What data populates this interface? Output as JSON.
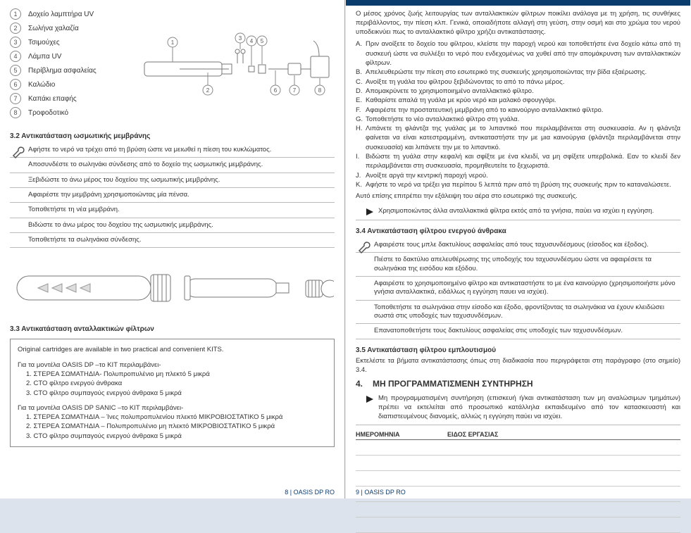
{
  "colors": {
    "brand": "#0b3c6e",
    "rule": "#bbbbbb",
    "text": "#333333"
  },
  "left": {
    "parts": [
      {
        "n": "1",
        "label": "Δοχείο λαμπτήρα UV"
      },
      {
        "n": "2",
        "label": "Σωλήνα χαλαζία"
      },
      {
        "n": "3",
        "label": "Τσιμούχες"
      },
      {
        "n": "4",
        "label": "Λάμπα UV"
      },
      {
        "n": "5",
        "label": "Περίβλημα ασφαλείας"
      },
      {
        "n": "6",
        "label": "Καλώδιο"
      },
      {
        "n": "7",
        "label": "Καπάκι επαφής"
      },
      {
        "n": "8",
        "label": "Τροφοδοτικό"
      }
    ],
    "sec32": "3.2  Αντικατάσταση ωσμωτικής μεμβράνης",
    "steps32": [
      "Αφήστε το νερό να τρέχει από τη βρύση ώστε να μειωθεί η πίεση του κυκλώματος.",
      "Αποσυνδέστε το σωληνάκι σύνδεσης από το δοχείο της ωσμωτικής μεμβράνης.",
      "Ξεβιδώστε το άνω μέρος του δοχείου της ωσμωτικής μεμβράνης.",
      "Αφαιρέστε την μεμβράνη χρησιμοποιώντας  μία πένσα.",
      "Τοποθετήστε τη νέα μεμβράνη.",
      "Βιδώστε το άνω μέρος του δοχείου της ωσμωτικής μεμβράνης.",
      "Τοποθετήστε τα σωληνάκια σύνδεσης."
    ],
    "sec33": "3.3  Αντικατάσταση ανταλλακτικών φίλτρων",
    "kit": {
      "lead": "Original cartridges are available in two practical and convenient KITS.",
      "g1_head": "Για τα μοντέλα OASIS DP –το KIT περιλαμβάνει-",
      "g1": [
        "1. ΣΤΕΡΕΑ ΣΩΜΑΤΗΔΙΑ- Πολυπροπυλένιο μη πλεκτό 5 μικρά",
        "2. CTO φίλτρο ενεργού άνθρακα",
        "3. CTO φίλτρο συμπαγούς ενεργού άνθρακα 5 μικρά"
      ],
      "g2_head": "Για τα μοντέλα OASIS DP SANIC –το KIT περιλαμβάνει-",
      "g2": [
        "1. ΣΤΕΡΕΑ ΣΩΜΑΤΗΔΙΑ – Ίνες πολυπροπυλενίου πλεκτό ΜΙΚΡΟΒΙΟΣΤΑΤΙΚΟ 5 μικρά",
        "2. ΣΤΕΡΕΑ ΣΩΜΑΤΗΔΙΑ – Πολυπροπυλένιο μη πλεκτό ΜΙΚΡΟΒΙΟΣΤΑΤΙΚΟ 5 μικρά",
        "3. CTO φίλτρο συμπαγούς ενεργού άνθρακα 5 μικρά"
      ]
    },
    "footer": "8  |  OASIS DP RO"
  },
  "right": {
    "intro": "Ο μέσος χρόνος ζωής λειτουργίας των ανταλλακτικών φίλτρων ποικίλει ανάλογα με τη χρήση, τις συνθήκες περιβάλλοντος, την πίεση κλπ. Γενικά, οποιαδήποτε αλλαγή στη γεύση, στην οσμή και στο χρώμα του νερού υποδεικνύει πως το ανταλλακτικό φίλτρο χρήζει αντικατάστασης.",
    "letters": [
      {
        "l": "A.",
        "t": "Πριν ανοίξετε το δοχείο του φίλτρου, κλείστε την παροχή νερού και τοποθετήστε ένα δοχείο κάτω από τη συσκευή ώστε να συλλέξει το νερό που ενδεχομένως να χυθεί από την απομάκρυνση των ανταλλακτικών φίλτρων."
      },
      {
        "l": "B.",
        "t": "Απελευθερώστε την πίεση στο εσωτερικό της συσκευής χρησιμοποιώντας την βίδα εξαέρωσης."
      },
      {
        "l": "C.",
        "t": "Ανοίξτε τη γυάλα του φίλτρου ξεβιδώνοντας το από το πάνω μέρος."
      },
      {
        "l": "D.",
        "t": "Απομακρύνετε το χρησιμοποιημένο ανταλλακτικό φίλτρο."
      },
      {
        "l": "E.",
        "t": "Καθαρίστε απαλά τη γυάλα με κρύο νερό και μαλακό σφουγγάρι."
      },
      {
        "l": "F.",
        "t": "Αφαιρέστε την προστατευτική μεμβράνη από το καινούργιο ανταλλακτικό φίλτρο."
      },
      {
        "l": "G.",
        "t": "Τοποθετήστε το νέο ανταλλακτικό φίλτρο στη γυάλα."
      },
      {
        "l": "H.",
        "t": "Λιπάνετε τη φλάντζα της γυάλας με το λιπαντικό που περιλαμβάνεται στη συσκευασία. Αν η φλάντζα φαίνεται να είναι κατεστραμμένη, αντικαταστήστε την με μια καινούργια (φλάντζα περιλαμβάνεται στην συσκευασία) και λιπάνετε την με το λιπαντικό."
      },
      {
        "l": "I.",
        "t": "Βιδώστε τη γυάλα στην κεφαλή και σφίξτε με ένα κλειδί, να μη σφίξετε υπερβολικά. Εαν το κλειδί δεν περιλαμβάνεται στη συσκευασία, προμηθευτείτε το ξεχωριστά."
      },
      {
        "l": "J.",
        "t": "Ανοίξτε αργά την κεντρική παροχή νερού."
      },
      {
        "l": "K.",
        "t": "Αφήστε το νερό να τρέξει για περίπου 5 λεπτά πριν από τη βρύση της συσκευής πριν το καταναλώσετε."
      }
    ],
    "tail": "Αυτό επίσης επιτρέπει την εξάλειψη του αέρα στο εσωτερικό της συσκευής.",
    "warn1": "Χρησιμοποιώντας άλλα ανταλλακτικά φίλτρα εκτός από τα γνήσια, παύει να ισχύει η εγγύηση.",
    "sec34": "3.4  Αντικατάσταση φίλτρου ενεργού άνθρακα",
    "steps34": [
      "Αφαιρέστε τους μπλε δακτυλίους ασφαλείας από τους ταχυσυνδέσμους (είσοδος και έξοδος).",
      "Πιέστε το δακτύλιο απελευθέρωσης της υποδοχής του ταχυσυνδέσμου ώστε να αφαιρέσετε τα σωληνάκια της εισόδου και εξόδου.",
      "Αφαιρέστε το χρησιμοποιημένο φίλτρο και αντικαταστήστε το με ένα καινούργιο (χρησιμοποιήστε μόνο γνήσια ανταλλακτικά, ειδάλλως η εγγύηση παυει να ισχύει).",
      "Τοποθετήστε τα σωληνάκια στην είσοδο και έξοδο, φροντίζοντας τα σωληνάκια να έχουν κλειδώσει σωστά στις υποδοχές των ταχυσυνδέσμων.",
      "Επανατοποθετήστε τους δακτυλίους ασφαλείας στις υποδοχές των ταχυσυνδέσμων."
    ],
    "sec35": "3.5  Αντικατάσταση φίλτρου εμπλουτισμού",
    "txt35": "Εκτελέστε τα βήματα αντικατάστασης όπως στη διαδικασία που περιγράφεται στη παράγραφο (στο σημείο) 3.4.",
    "sec4n": "4.",
    "sec4t": "ΜΗ ΠΡΟΓΡΑΜΜΑΤΙΣΜΕΝΗ ΣΥΝΤΗΡΗΣΗ",
    "txt4": "Μη προγραμματισμένη συντήρηση (επισκευή ή/και αντικατάσταση των μη αναλώσιμων τμημάτων) πρέπει να εκτελείται από προσωπικό κατάλληλα εκπαιδευμένο από τον κατασκευαστή και διαπιστευμένους διανομείς, αλλιώς η εγγύηση παύει να ισχύει.",
    "log_h1": "ΗΜΕΡΟΜΗΝΙΑ",
    "log_h2": "ΕΙΔΟΣ ΕΡΓΑΣΙΑΣ",
    "footer": "9  |  OASIS DP RO"
  }
}
